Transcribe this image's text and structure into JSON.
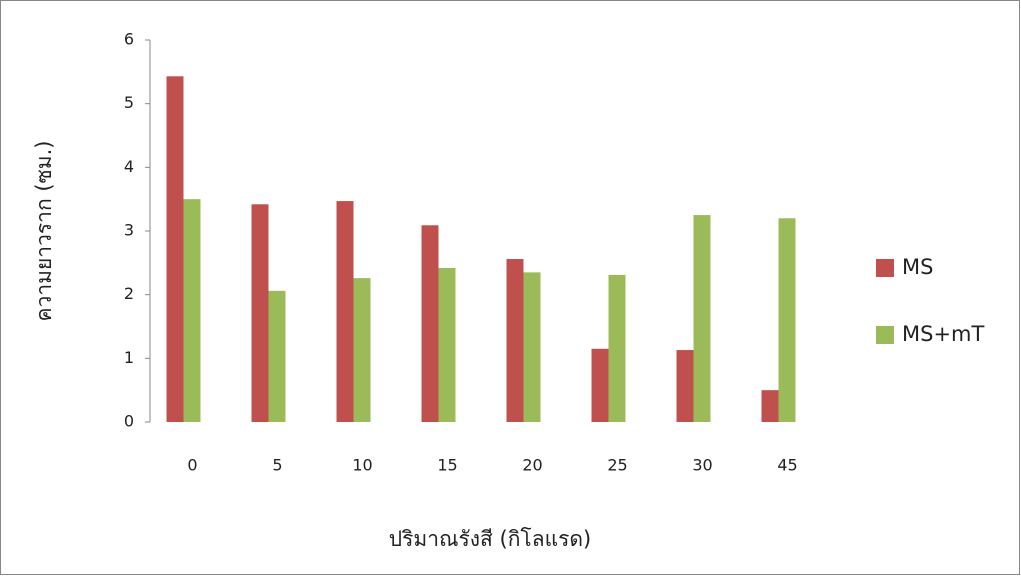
{
  "chart_data": {
    "type": "bar",
    "x_label": "ปริมาณรังสี (กิโลแรด)",
    "y_label": "ความยาวราก (ซม.)",
    "categories": [
      "0",
      "5",
      "10",
      "15",
      "20",
      "25",
      "30",
      "45"
    ],
    "series": [
      {
        "name": "MS",
        "color": "#c0504d",
        "values": [
          5.43,
          3.42,
          3.47,
          3.09,
          2.56,
          1.15,
          1.13,
          0.5
        ]
      },
      {
        "name": "MS+mT",
        "color": "#9bbb59",
        "values": [
          3.5,
          2.06,
          2.26,
          2.42,
          2.35,
          2.31,
          3.25,
          3.2
        ]
      }
    ],
    "ylim": [
      0,
      6
    ],
    "yticks": [
      0,
      1,
      2,
      3,
      4,
      5,
      6
    ],
    "grid": false,
    "legend": "right"
  }
}
